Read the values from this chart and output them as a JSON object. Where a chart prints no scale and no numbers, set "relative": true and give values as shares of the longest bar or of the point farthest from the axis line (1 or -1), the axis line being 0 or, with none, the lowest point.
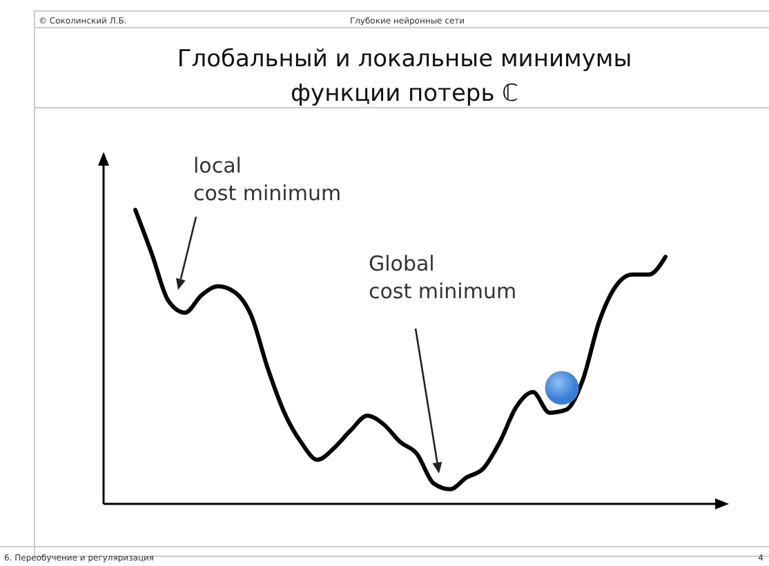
{
  "chart_data": {
    "type": "line",
    "title": "Глобальный и локальные минимумы\nфункции потерь ℂ",
    "relative": true,
    "categories": [
      null,
      null,
      null,
      null,
      null,
      null,
      null,
      null,
      null,
      null,
      null,
      null,
      null,
      null,
      null,
      null,
      null,
      null,
      null,
      null,
      null,
      null,
      null,
      null,
      null,
      null,
      null,
      null,
      null,
      null,
      null,
      null,
      null
    ],
    "series": [
      {
        "color": "#000000",
        "values": [
          1.0,
          0.85,
          0.69,
          0.65,
          0.71,
          0.74,
          0.72,
          0.64,
          0.46,
          0.31,
          0.21,
          0.15,
          0.19,
          0.25,
          0.3,
          0.27,
          0.21,
          0.17,
          0.07,
          0.05,
          0.09,
          0.12,
          0.21,
          0.33,
          0.38,
          0.31,
          0.32,
          0.42,
          0.62,
          0.74,
          0.78,
          0.78,
          0.84
        ]
      }
    ],
    "annotations": [
      "local\ncost minimum",
      "Global\ncost minimum",
      "© Соколинский Л.Б.",
      "Глубокие нейронные сети",
      "6. Переобучение и регуляризация",
      "4"
    ],
    "marker": "none",
    "line_style": "solid"
  }
}
